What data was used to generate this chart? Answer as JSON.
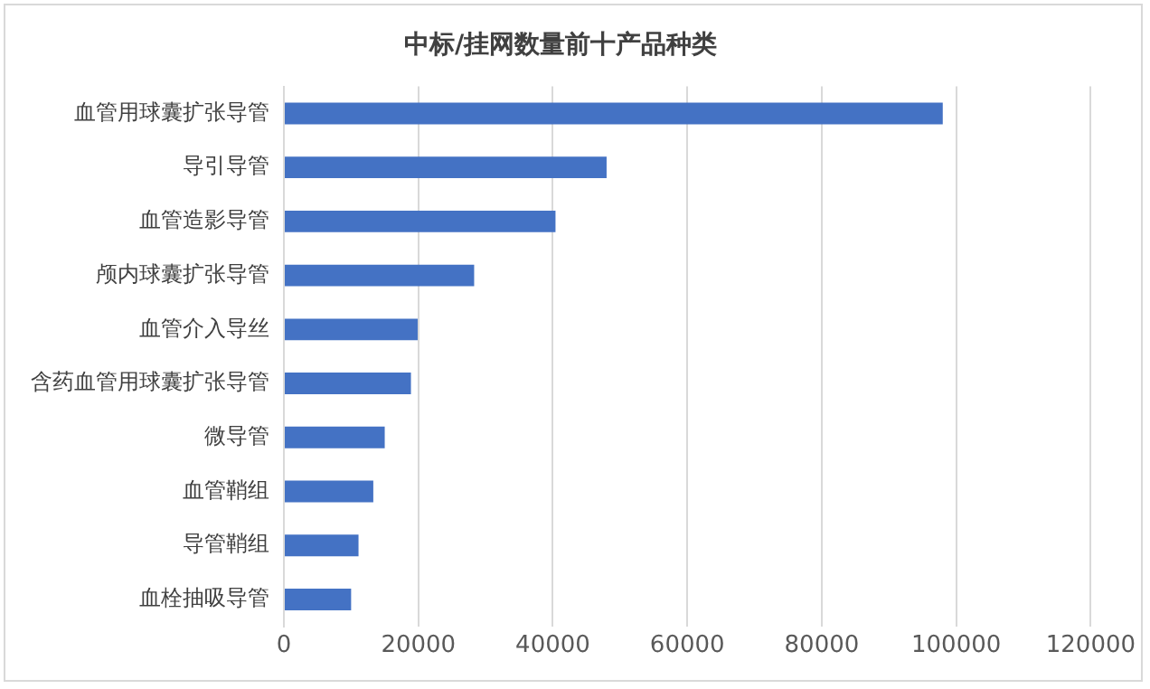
{
  "chart_data": {
    "type": "bar",
    "orientation": "horizontal",
    "title": "中标/挂网数量前十产品种类",
    "categories": [
      "血管用球囊扩张导管",
      "导引导管",
      "血管造影导管",
      "颅内球囊扩张导管",
      "血管介入导丝",
      "含药血管用球囊扩张导管",
      "微导管",
      "血管鞘组",
      "导管鞘组",
      "血栓抽吸导管"
    ],
    "values": [
      98000,
      48000,
      40400,
      28300,
      19900,
      18900,
      15000,
      13300,
      11100,
      10000
    ],
    "color": "#4472c4",
    "xlim": [
      0,
      120000
    ],
    "xticks": [
      0,
      20000,
      40000,
      60000,
      80000,
      100000,
      120000
    ],
    "grid": "x",
    "legend": false
  }
}
